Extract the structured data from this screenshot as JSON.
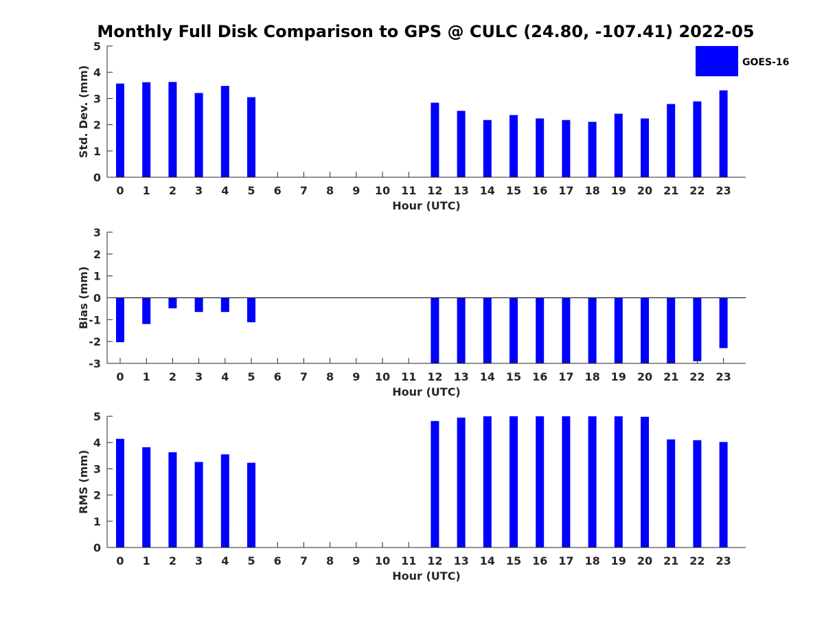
{
  "figure": {
    "title": "Monthly Full Disk Comparison to GPS @ CULC (24.80, -107.41) 2022-05",
    "legend": {
      "label": "GOES-16",
      "color": "#0000ff",
      "placement": "top-right"
    }
  },
  "chart_data": [
    {
      "type": "bar",
      "name": "std-dev",
      "categories": [
        "0",
        "1",
        "2",
        "3",
        "4",
        "5",
        "6",
        "7",
        "8",
        "9",
        "10",
        "11",
        "12",
        "13",
        "14",
        "15",
        "16",
        "17",
        "18",
        "19",
        "20",
        "21",
        "22",
        "23"
      ],
      "values": [
        3.57,
        3.62,
        3.63,
        3.21,
        3.48,
        3.05,
        null,
        null,
        null,
        null,
        null,
        null,
        2.84,
        2.53,
        2.18,
        2.37,
        2.24,
        2.18,
        2.11,
        2.42,
        2.24,
        2.79,
        2.89,
        3.31
      ],
      "series_name": "GOES-16",
      "xlabel": "Hour (UTC)",
      "ylabel": "Std. Dev. (mm)",
      "ylim": [
        0,
        5
      ],
      "yticks": [
        0,
        1,
        2,
        3,
        4,
        5
      ],
      "grid": false
    },
    {
      "type": "bar",
      "name": "bias",
      "categories": [
        "0",
        "1",
        "2",
        "3",
        "4",
        "5",
        "6",
        "7",
        "8",
        "9",
        "10",
        "11",
        "12",
        "13",
        "14",
        "15",
        "16",
        "17",
        "18",
        "19",
        "20",
        "21",
        "22",
        "23"
      ],
      "values": [
        -2.03,
        -1.2,
        -0.48,
        -0.65,
        -0.65,
        -1.12,
        null,
        null,
        null,
        null,
        null,
        null,
        -3.0,
        -3.0,
        -3.0,
        -3.0,
        -3.0,
        -3.0,
        -3.0,
        -3.0,
        -3.0,
        -3.0,
        -2.9,
        -2.3
      ],
      "series_name": "GOES-16",
      "xlabel": "Hour (UTC)",
      "ylabel": "Bias (mm)",
      "ylim": [
        -3,
        3
      ],
      "yticks": [
        -3,
        -2,
        -1,
        0,
        1,
        2,
        3
      ],
      "grid": false
    },
    {
      "type": "bar",
      "name": "rms",
      "categories": [
        "0",
        "1",
        "2",
        "3",
        "4",
        "5",
        "6",
        "7",
        "8",
        "9",
        "10",
        "11",
        "12",
        "13",
        "14",
        "15",
        "16",
        "17",
        "18",
        "19",
        "20",
        "21",
        "22",
        "23"
      ],
      "values": [
        4.14,
        3.82,
        3.63,
        3.26,
        3.55,
        3.23,
        null,
        null,
        null,
        null,
        null,
        null,
        4.82,
        4.95,
        5.0,
        5.0,
        5.0,
        5.0,
        5.0,
        5.0,
        4.98,
        4.12,
        4.09,
        4.02
      ],
      "series_name": "GOES-16",
      "xlabel": "Hour (UTC)",
      "ylabel": "RMS (mm)",
      "ylim": [
        0,
        5
      ],
      "yticks": [
        0,
        1,
        2,
        3,
        4,
        5
      ],
      "grid": false
    }
  ]
}
